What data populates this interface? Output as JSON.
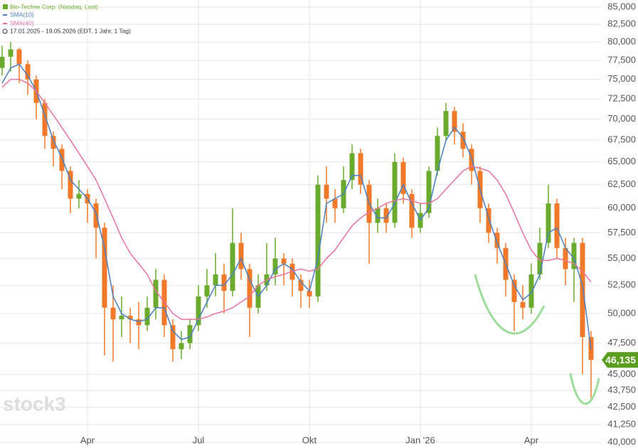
{
  "chart_data": {
    "type": "candlestick",
    "title": "Bio-Techne Corp. (Nasdaq, Last)",
    "subtitle": "17.01.2025 - 19.05.2026 (EDT, 1 Jahr, 1 Tag)",
    "watermark": "stock3",
    "log_scale": true,
    "grid": true,
    "ylim": [
      40000,
      85000
    ],
    "yticks": [
      {
        "value": 40000,
        "label": "40,000"
      },
      {
        "value": 41250,
        "label": "41,250"
      },
      {
        "value": 42500,
        "label": "42,500"
      },
      {
        "value": 43750,
        "label": "43,750"
      },
      {
        "value": 45000,
        "label": "45,000"
      },
      {
        "value": 47500,
        "label": "47,500"
      },
      {
        "value": 50000,
        "label": "50,000"
      },
      {
        "value": 52500,
        "label": "52,500"
      },
      {
        "value": 55000,
        "label": "55,000"
      },
      {
        "value": 57500,
        "label": "57,500"
      },
      {
        "value": 60000,
        "label": "60,000"
      },
      {
        "value": 62500,
        "label": "62,500"
      },
      {
        "value": 65000,
        "label": "65,000"
      },
      {
        "value": 67500,
        "label": "67,500"
      },
      {
        "value": 70000,
        "label": "70,000"
      },
      {
        "value": 72500,
        "label": "72,500"
      },
      {
        "value": 75000,
        "label": "75,000"
      },
      {
        "value": 77500,
        "label": "77,500"
      },
      {
        "value": 80000,
        "label": "80,000"
      },
      {
        "value": 82500,
        "label": "82,500"
      },
      {
        "value": 85000,
        "label": "85,000"
      }
    ],
    "categories": [
      null,
      null,
      null,
      null,
      null,
      null,
      null,
      null,
      null,
      null,
      "Apr",
      null,
      null,
      null,
      null,
      null,
      null,
      null,
      null,
      null,
      null,
      null,
      null,
      "Jul",
      null,
      null,
      null,
      null,
      null,
      null,
      null,
      null,
      null,
      null,
      null,
      null,
      "Okt",
      null,
      null,
      null,
      null,
      null,
      null,
      null,
      null,
      null,
      null,
      null,
      null,
      "Jan '26",
      null,
      null,
      null,
      null,
      null,
      null,
      null,
      null,
      null,
      null,
      null,
      null,
      "Apr",
      null,
      null,
      null,
      null,
      null,
      null,
      null
    ],
    "last_price": {
      "value": 46135,
      "label": "46,135"
    },
    "last_price_color": "#5a9e1f",
    "up_color": "#6aab2e",
    "down_color": "#f07a2a",
    "series": [
      {
        "name": "Bio-Techne Corp. (Nasdaq, Last)",
        "color": "#6aab2e",
        "open": [
          76500,
          78000,
          79000,
          77000,
          75000,
          72000,
          68000,
          66500,
          64000,
          61000,
          61500,
          60500,
          58000,
          50500,
          49500,
          49800,
          49500,
          49000,
          50500,
          53000,
          49000,
          47000,
          47500,
          49000,
          51500,
          52500,
          53500,
          52000,
          56500,
          54000,
          50500,
          52500,
          53500,
          55000,
          54500,
          53000,
          52000,
          51500,
          62500,
          61000,
          60000,
          63000,
          66000,
          62500,
          58500,
          60000,
          58500,
          65000,
          61500,
          58000,
          59500,
          64000,
          68000,
          71000,
          68500,
          66500,
          64000,
          60000,
          57500,
          56000,
          53000,
          51000,
          50500,
          53500,
          56500,
          60500,
          56000,
          54000,
          56500,
          48000
        ],
        "high": [
          79500,
          80000,
          79200,
          77500,
          75500,
          72500,
          68500,
          67000,
          64500,
          63000,
          62000,
          61000,
          58500,
          52500,
          51500,
          50500,
          51000,
          51500,
          54000,
          53500,
          49500,
          48500,
          49500,
          52500,
          54000,
          55500,
          54500,
          60000,
          57500,
          54500,
          53500,
          56500,
          57000,
          55500,
          55000,
          53500,
          53000,
          63500,
          64500,
          62000,
          64500,
          67000,
          66500,
          63000,
          61000,
          60500,
          66000,
          65500,
          62000,
          60500,
          64500,
          69000,
          72000,
          71500,
          69500,
          67000,
          64500,
          60500,
          58000,
          56500,
          53500,
          52500,
          54500,
          58000,
          62500,
          61000,
          57000,
          57000,
          57000,
          48500
        ],
        "low": [
          75500,
          76000,
          74500,
          73000,
          70000,
          66500,
          64500,
          62000,
          59500,
          60000,
          58500,
          55000,
          46500,
          46000,
          48000,
          47500,
          47000,
          48500,
          49500,
          48000,
          46000,
          46200,
          47000,
          48500,
          50500,
          51500,
          50000,
          51500,
          53000,
          48000,
          50000,
          52000,
          52500,
          52500,
          51500,
          50500,
          50500,
          51000,
          58500,
          58500,
          59500,
          62000,
          61500,
          54500,
          57500,
          57500,
          58000,
          60500,
          57000,
          57500,
          59000,
          63500,
          67500,
          67000,
          65500,
          62500,
          58500,
          56500,
          54500,
          51500,
          48500,
          49500,
          50000,
          53000,
          56000,
          55000,
          52500,
          51000,
          45000,
          43200
        ],
        "close": [
          78000,
          79000,
          77000,
          75000,
          72000,
          68000,
          66500,
          64000,
          61000,
          61500,
          60500,
          58000,
          50500,
          49500,
          49800,
          49500,
          49000,
          50500,
          53000,
          49000,
          47000,
          47500,
          49000,
          51500,
          52500,
          53500,
          52000,
          56500,
          54000,
          50500,
          52500,
          53500,
          55000,
          54500,
          53000,
          52000,
          51500,
          62500,
          61000,
          60000,
          63000,
          66000,
          62500,
          58500,
          60000,
          58500,
          65000,
          61500,
          58000,
          59500,
          64000,
          68000,
          71000,
          68500,
          66500,
          64000,
          60000,
          57500,
          56000,
          53000,
          51000,
          50500,
          53500,
          56500,
          60500,
          56000,
          54000,
          56500,
          48000,
          46135
        ]
      },
      {
        "name": "SMA(10)",
        "color": "#4a7fc1",
        "values": [
          74500,
          76500,
          77000,
          75500,
          73500,
          70500,
          67500,
          65500,
          63000,
          62000,
          61000,
          59500,
          56000,
          51500,
          50000,
          49500,
          49300,
          49500,
          50500,
          50500,
          48500,
          47800,
          48000,
          49500,
          51000,
          52500,
          52500,
          53500,
          55000,
          53000,
          51500,
          52500,
          54000,
          54500,
          54000,
          52800,
          52000,
          55000,
          60500,
          61000,
          61500,
          63500,
          63500,
          60500,
          59000,
          59000,
          60500,
          62500,
          60500,
          58800,
          60000,
          64000,
          67500,
          69000,
          67800,
          65500,
          62000,
          59000,
          56500,
          54500,
          52500,
          51200,
          51800,
          53500,
          57500,
          58000,
          56000,
          55000,
          52500,
          47000
        ]
      },
      {
        "name": "SMA(40)",
        "color": "#e8739a",
        "values": [
          74000,
          75000,
          75000,
          74500,
          73500,
          72000,
          70500,
          69000,
          67500,
          66000,
          64500,
          63000,
          61000,
          59000,
          57000,
          55500,
          54500,
          53500,
          52000,
          51000,
          50000,
          49500,
          49500,
          49500,
          49700,
          50000,
          50200,
          50500,
          51000,
          51500,
          52500,
          53000,
          53300,
          53500,
          53800,
          54000,
          53800,
          54000,
          55000,
          55800,
          57000,
          58200,
          59000,
          59600,
          60000,
          60500,
          60800,
          61000,
          60800,
          60500,
          60500,
          61000,
          62000,
          63000,
          64000,
          64500,
          64300,
          64000,
          63000,
          61500,
          59500,
          57500,
          55800,
          54800,
          54800,
          55000,
          54800,
          54500,
          53800,
          52800
        ]
      }
    ]
  }
}
